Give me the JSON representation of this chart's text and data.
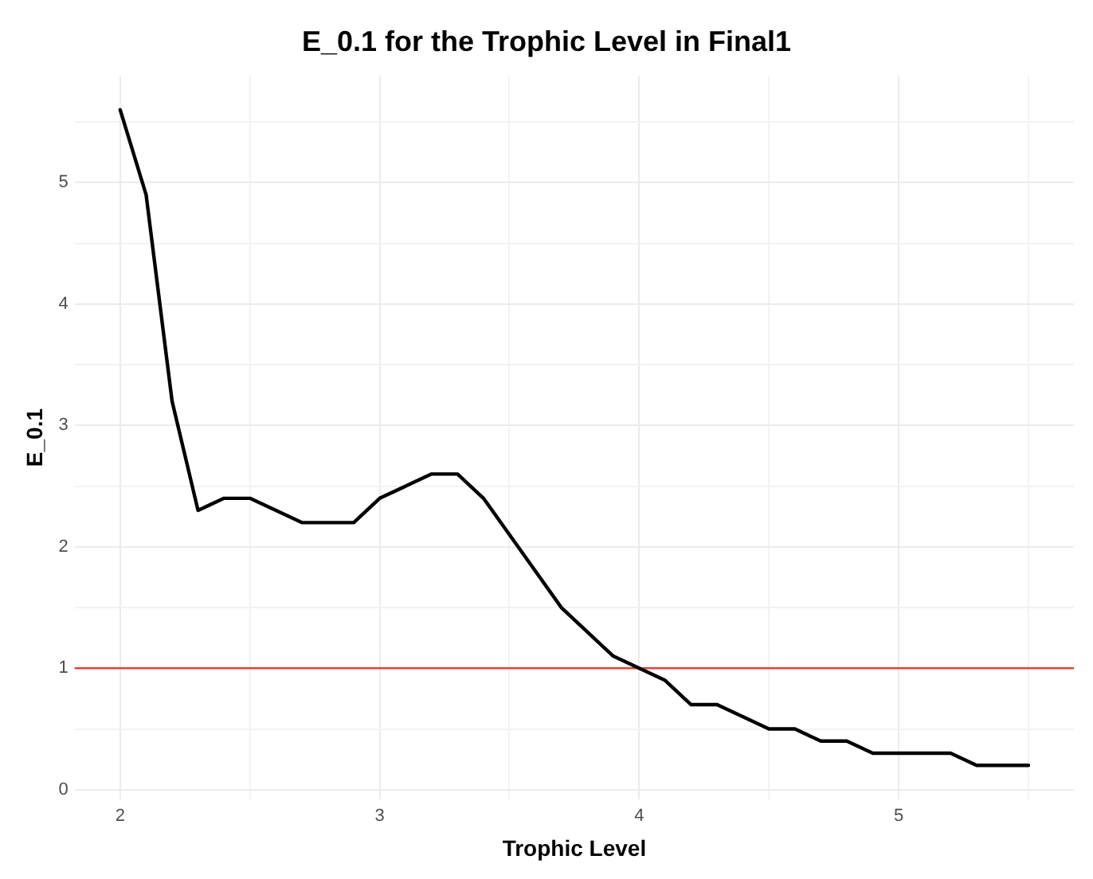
{
  "chart_data": {
    "type": "line",
    "title": "E_0.1 for the Trophic Level in Final1",
    "xlabel": "Trophic Level",
    "ylabel": "E_0.1",
    "x": [
      2.0,
      2.1,
      2.2,
      2.3,
      2.4,
      2.5,
      2.6,
      2.7,
      2.8,
      2.9,
      3.0,
      3.1,
      3.2,
      3.3,
      3.4,
      3.5,
      3.6,
      3.7,
      3.8,
      3.9,
      4.0,
      4.1,
      4.2,
      4.3,
      4.4,
      4.5,
      4.6,
      4.7,
      4.8,
      4.9,
      5.0,
      5.1,
      5.2,
      5.3,
      5.4,
      5.5
    ],
    "series": [
      {
        "color": "#000000",
        "values": [
          5.6,
          4.9,
          3.2,
          2.3,
          2.4,
          2.4,
          2.3,
          2.2,
          2.2,
          2.2,
          2.4,
          2.5,
          2.6,
          2.6,
          2.4,
          2.1,
          1.8,
          1.5,
          1.3,
          1.1,
          1.0,
          0.9,
          0.7,
          0.7,
          0.6,
          0.5,
          0.5,
          0.4,
          0.4,
          0.3,
          0.3,
          0.3,
          0.3,
          0.2,
          0.2,
          0.2
        ]
      }
    ],
    "xlim": [
      1.825,
      5.675
    ],
    "ylim": [
      -0.08,
      5.88
    ],
    "xticks": [
      2,
      {
        "value": 2.5,
        "label": null
      },
      3,
      {
        "value": 3.5,
        "label": null
      },
      4,
      {
        "value": 4.5,
        "label": null
      },
      5,
      {
        "value": 5.5,
        "label": null
      }
    ],
    "yticks": [
      0,
      {
        "value": 0.5,
        "label": null
      },
      1,
      {
        "value": 1.5,
        "label": null
      },
      2,
      {
        "value": 2.5,
        "label": null
      },
      3,
      {
        "value": 3.5,
        "label": null
      },
      4,
      {
        "value": 4.5,
        "label": null
      },
      5,
      {
        "value": 5.5,
        "label": null
      }
    ],
    "ref_lines": [
      {
        "axis": "y",
        "value": 1,
        "color": "#e8403a"
      }
    ],
    "grid": true,
    "legend": false,
    "marker": "none",
    "line_style": "solid"
  }
}
